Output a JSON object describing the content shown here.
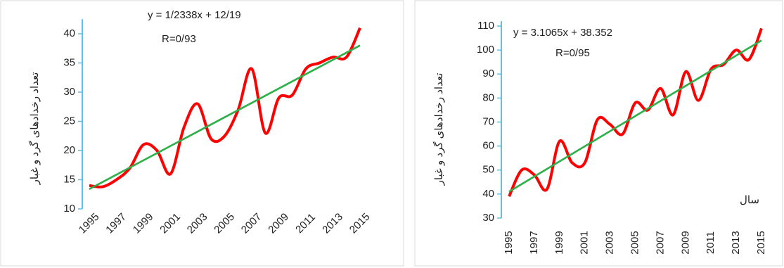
{
  "chart_data": [
    {
      "type": "line",
      "y_label": "تعداد رخدادهای گرد و غبار",
      "equation": "y = 1/2338x + 12/19",
      "r_value": "R=0/93",
      "categories": [
        "1995",
        null,
        "1997",
        null,
        "1999",
        null,
        "2001",
        null,
        "2003",
        null,
        "2005",
        null,
        "2007",
        null,
        "2009",
        null,
        "2011",
        null,
        "2013",
        null,
        "2015"
      ],
      "series": [
        {
          "color": "#ff0000",
          "values": [
            14,
            13.8,
            15,
            17,
            21,
            20,
            16,
            24,
            28,
            22,
            22.5,
            27,
            34,
            23,
            29,
            29.5,
            34,
            35,
            36,
            36,
            41
          ]
        }
      ],
      "trend_line": {
        "color": "#2eb04a",
        "values": [
          13.4,
          38
        ]
      },
      "ylim": [
        10,
        42.5
      ],
      "yticks": [
        10,
        15,
        20,
        25,
        30,
        35,
        40
      ]
    },
    {
      "type": "line",
      "y_label": "تعداد رخدادهای گرد و غبار",
      "x_label": "سال",
      "equation": "y = 3.1065x + 38.352",
      "r_value": "R=0/95",
      "categories": [
        "1995",
        null,
        "1997",
        null,
        "1999",
        null,
        "2001",
        null,
        "2003",
        null,
        "2005",
        null,
        "2007",
        null,
        "2009",
        null,
        "2011",
        null,
        "2013",
        null,
        "2015"
      ],
      "series": [
        {
          "color": "#ff0000",
          "values": [
            39,
            50,
            48,
            42,
            62,
            53,
            53,
            71,
            69,
            65,
            78,
            75,
            84,
            73,
            91,
            79,
            92,
            94,
            100,
            96,
            109
          ]
        }
      ],
      "trend_line": {
        "color": "#2eb04a",
        "values": [
          41,
          104
        ]
      },
      "ylim": [
        30,
        112
      ],
      "yticks": [
        30,
        40,
        50,
        60,
        70,
        80,
        90,
        100,
        110
      ]
    }
  ]
}
